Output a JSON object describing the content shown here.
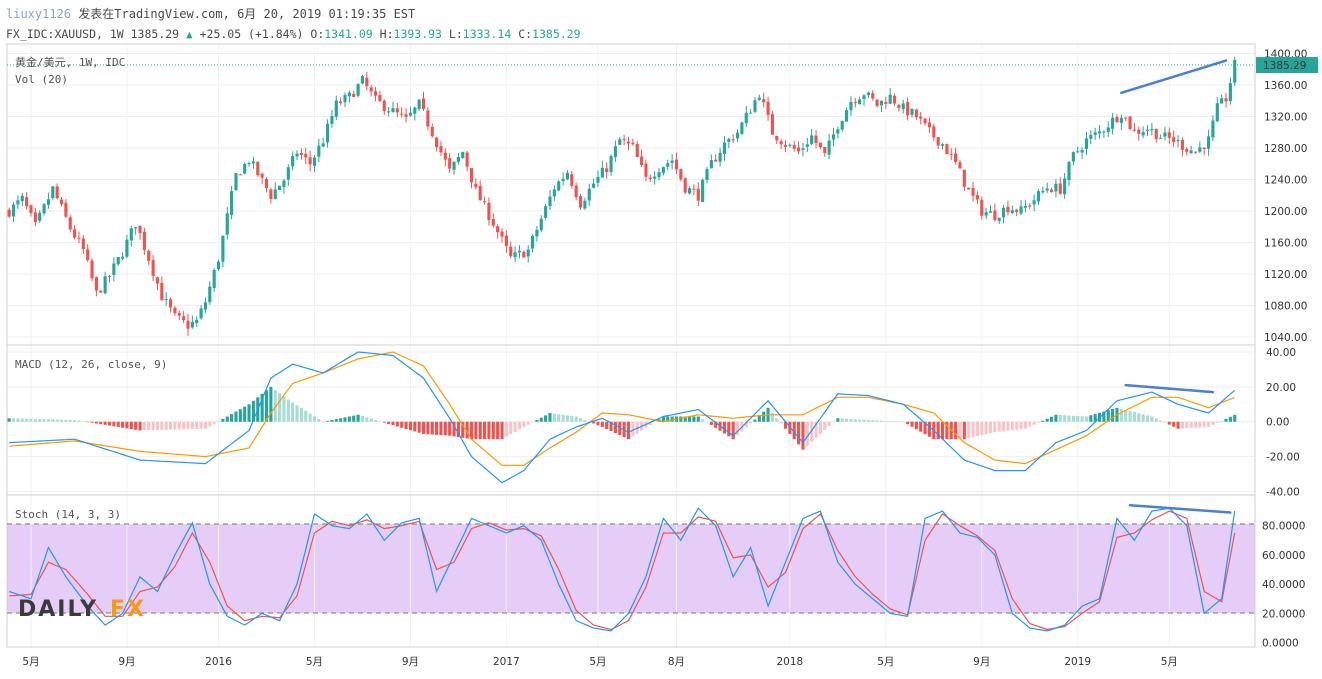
{
  "header": {
    "user": "liuxy1126",
    "published": "发表在TradingView.com, 6月 20, 2019 01:19:35 EST",
    "symbol": "FX_IDC:XAUUSD, 1W 1385.29",
    "change": "+25.05 (+1.84%)",
    "o_label": "O:",
    "o_value": "1341.09",
    "h_label": "H:",
    "h_value": "1393.93",
    "l_label": "L:",
    "l_value": "1333.14",
    "c_label": "C:",
    "c_value": "1385.29"
  },
  "price_panel": {
    "title": "黄金/美元, 1W, IDC",
    "volume_label": "Vol (20)",
    "last_price_tag": "1385.29",
    "y_ticks": [
      "1400.00",
      "1360.00",
      "1320.00",
      "1280.00",
      "1240.00",
      "1200.00",
      "1160.00",
      "1120.00",
      "1080.00",
      "1040.00"
    ]
  },
  "macd_panel": {
    "title": "MACD (12, 26, close, 9)",
    "y_ticks": [
      "40.00",
      "20.00",
      "0.00",
      "-20.00",
      "-40.00"
    ]
  },
  "stoch_panel": {
    "title": "Stoch (14, 3, 3)",
    "y_ticks": [
      "80.0000",
      "60.0000",
      "40.0000",
      "20.0000",
      "0.0000"
    ]
  },
  "x_ticks": [
    "5月",
    "9月",
    "2016",
    "5月",
    "9月",
    "2017",
    "5月",
    "8月",
    "2018",
    "5月",
    "9月",
    "2019",
    "5月"
  ],
  "logo": {
    "left": "DAILY",
    "right": "FX"
  },
  "colors": {
    "up": "#26a69a",
    "down": "#ef5350",
    "macd_line": "#2196f3",
    "signal_line": "#ff9800",
    "stoch_k": "#2196f3",
    "stoch_d": "#ef5350",
    "stoch_band": "#e1c4f7",
    "trendline": "#4a7fd6"
  },
  "chart_data": [
    {
      "type": "candlestick",
      "title": "黄金/美元, 1W, IDC",
      "ylim": [
        1030,
        1412
      ],
      "points": [
        [
          0,
          1200
        ],
        [
          3,
          1215
        ],
        [
          6,
          1180
        ],
        [
          10,
          1228
        ],
        [
          14,
          1178
        ],
        [
          17,
          1150
        ],
        [
          20,
          1095
        ],
        [
          23,
          1118
        ],
        [
          26,
          1148
        ],
        [
          29,
          1185
        ],
        [
          32,
          1140
        ],
        [
          35,
          1092
        ],
        [
          38,
          1065
        ],
        [
          41,
          1055
        ],
        [
          43,
          1060
        ],
        [
          45,
          1085
        ],
        [
          48,
          1140
        ],
        [
          52,
          1245
        ],
        [
          55,
          1265
        ],
        [
          58,
          1238
        ],
        [
          60,
          1220
        ],
        [
          63,
          1240
        ],
        [
          66,
          1275
        ],
        [
          69,
          1260
        ],
        [
          72,
          1290
        ],
        [
          75,
          1335
        ],
        [
          78,
          1345
        ],
        [
          81,
          1365
        ],
        [
          84,
          1340
        ],
        [
          87,
          1330
        ],
        [
          91,
          1315
        ],
        [
          94,
          1335
        ],
        [
          97,
          1300
        ],
        [
          101,
          1250
        ],
        [
          104,
          1275
        ],
        [
          107,
          1225
        ],
        [
          111,
          1185
        ],
        [
          115,
          1140
        ],
        [
          119,
          1150
        ],
        [
          122,
          1190
        ],
        [
          125,
          1230
        ],
        [
          128,
          1250
        ],
        [
          131,
          1210
        ],
        [
          134,
          1235
        ],
        [
          137,
          1255
        ],
        [
          140,
          1290
        ],
        [
          143,
          1280
        ],
        [
          146,
          1240
        ],
        [
          149,
          1255
        ],
        [
          152,
          1265
        ],
        [
          155,
          1230
        ],
        [
          158,
          1220
        ],
        [
          161,
          1260
        ],
        [
          164,
          1285
        ],
        [
          167,
          1300
        ],
        [
          170,
          1330
        ],
        [
          172,
          1350
        ],
        [
          175,
          1300
        ],
        [
          178,
          1285
        ],
        [
          181,
          1275
        ],
        [
          184,
          1295
        ],
        [
          187,
          1270
        ],
        [
          190,
          1310
        ],
        [
          193,
          1340
        ],
        [
          196,
          1350
        ],
        [
          199,
          1335
        ],
        [
          202,
          1345
        ],
        [
          205,
          1330
        ],
        [
          208,
          1320
        ],
        [
          211,
          1300
        ],
        [
          214,
          1285
        ],
        [
          217,
          1260
        ],
        [
          220,
          1225
        ],
        [
          223,
          1200
        ],
        [
          226,
          1195
        ],
        [
          229,
          1205
        ],
        [
          232,
          1200
        ],
        [
          235,
          1215
        ],
        [
          238,
          1230
        ],
        [
          241,
          1228
        ],
        [
          244,
          1270
        ],
        [
          247,
          1290
        ],
        [
          250,
          1300
        ],
        [
          253,
          1315
        ],
        [
          255,
          1325
        ],
        [
          258,
          1300
        ],
        [
          261,
          1305
        ],
        [
          264,
          1295
        ],
        [
          267,
          1290
        ],
        [
          270,
          1280
        ],
        [
          272,
          1275
        ],
        [
          275,
          1290
        ],
        [
          277,
          1330
        ],
        [
          279,
          1343
        ],
        [
          281,
          1385
        ]
      ],
      "last": 1385.29
    },
    {
      "type": "line",
      "title": "MACD (12, 26, close, 9)",
      "ylim": [
        -42,
        44
      ],
      "x": [
        0,
        15,
        30,
        45,
        55,
        60,
        65,
        72,
        80,
        88,
        95,
        101,
        106,
        113,
        118,
        124,
        130,
        136,
        142,
        150,
        158,
        166,
        174,
        182,
        190,
        197,
        205,
        212,
        219,
        226,
        233,
        240,
        247,
        254,
        262,
        268,
        275,
        281
      ],
      "series": [
        {
          "name": "MACD",
          "values": [
            -12,
            -10,
            -22,
            -24,
            -5,
            25,
            33,
            28,
            40,
            38,
            25,
            2,
            -20,
            -35,
            -28,
            -10,
            -3,
            2,
            -6,
            3,
            7,
            -8,
            12,
            -12,
            16,
            15,
            10,
            -5,
            -22,
            -28,
            -28,
            -12,
            -5,
            12,
            17,
            10,
            5,
            18
          ]
        },
        {
          "name": "Signal",
          "values": [
            -14,
            -11,
            -17,
            -20,
            -15,
            5,
            22,
            28,
            36,
            40,
            32,
            10,
            -10,
            -25,
            -25,
            -15,
            -6,
            5,
            4,
            0,
            4,
            2,
            4,
            4,
            14,
            14,
            10,
            5,
            -12,
            -22,
            -24,
            -16,
            -8,
            4,
            14,
            14,
            8,
            14
          ]
        }
      ]
    },
    {
      "type": "line",
      "title": "Stoch (14, 3, 3)",
      "ylim": [
        -3,
        101
      ],
      "x": [
        0,
        5,
        9,
        13,
        18,
        22,
        26,
        30,
        34,
        38,
        42,
        46,
        50,
        54,
        58,
        62,
        66,
        70,
        74,
        78,
        82,
        86,
        90,
        94,
        98,
        102,
        106,
        110,
        114,
        118,
        122,
        126,
        130,
        134,
        138,
        142,
        146,
        150,
        154,
        158,
        162,
        166,
        170,
        174,
        178,
        182,
        186,
        190,
        194,
        198,
        202,
        206,
        210,
        214,
        218,
        222,
        226,
        230,
        234,
        238,
        242,
        246,
        250,
        254,
        258,
        262,
        266,
        270,
        274,
        278,
        281
      ],
      "series": [
        {
          "name": "%K",
          "values": [
            35,
            30,
            65,
            45,
            25,
            12,
            20,
            45,
            35,
            60,
            82,
            40,
            18,
            12,
            20,
            15,
            40,
            88,
            80,
            78,
            88,
            70,
            82,
            85,
            35,
            60,
            85,
            80,
            75,
            80,
            70,
            40,
            15,
            10,
            8,
            20,
            45,
            85,
            70,
            92,
            80,
            45,
            65,
            25,
            55,
            85,
            90,
            55,
            40,
            30,
            20,
            18,
            85,
            90,
            75,
            72,
            60,
            20,
            10,
            8,
            12,
            25,
            30,
            85,
            70,
            90,
            92,
            80,
            20,
            30,
            90
          ]
        },
        {
          "name": "%D",
          "values": [
            32,
            33,
            55,
            50,
            33,
            18,
            18,
            35,
            38,
            52,
            75,
            55,
            25,
            15,
            18,
            17,
            32,
            75,
            83,
            80,
            84,
            78,
            80,
            83,
            50,
            55,
            78,
            82,
            77,
            78,
            73,
            50,
            22,
            12,
            9,
            15,
            38,
            75,
            75,
            86,
            83,
            58,
            60,
            38,
            48,
            78,
            88,
            63,
            45,
            33,
            23,
            19,
            70,
            88,
            80,
            73,
            63,
            30,
            13,
            9,
            11,
            20,
            28,
            72,
            75,
            84,
            90,
            85,
            35,
            28,
            75
          ]
        }
      ]
    }
  ]
}
